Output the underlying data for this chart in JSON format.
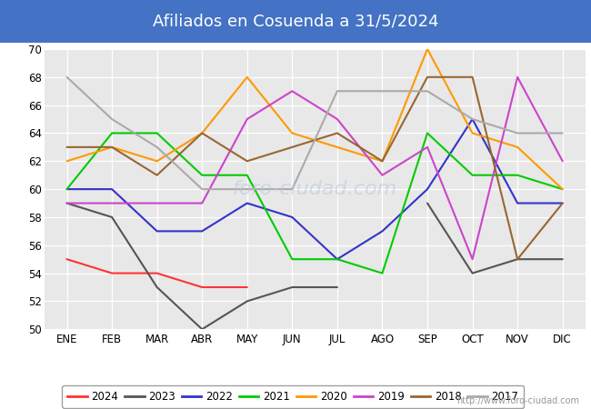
{
  "title": "Afiliados en Cosuenda a 31/5/2024",
  "title_bg_color": "#4472c4",
  "title_text_color": "white",
  "ylim": [
    50,
    70
  ],
  "yticks": [
    50,
    52,
    54,
    56,
    58,
    60,
    62,
    64,
    66,
    68,
    70
  ],
  "months": [
    "ENE",
    "FEB",
    "MAR",
    "ABR",
    "MAY",
    "JUN",
    "JUL",
    "AGO",
    "SEP",
    "OCT",
    "NOV",
    "DIC"
  ],
  "url": "http://www.foro-ciudad.com",
  "series": {
    "2024": {
      "color": "#ff3333",
      "data": [
        55,
        54,
        54,
        53,
        53,
        null,
        null,
        null,
        null,
        null,
        null,
        null
      ]
    },
    "2023": {
      "color": "#555555",
      "data": [
        59,
        58,
        53,
        50,
        52,
        53,
        53,
        null,
        59,
        54,
        55,
        55
      ]
    },
    "2022": {
      "color": "#3333cc",
      "data": [
        60,
        60,
        57,
        57,
        59,
        58,
        55,
        57,
        60,
        65,
        59,
        59
      ]
    },
    "2021": {
      "color": "#00cc00",
      "data": [
        60,
        64,
        64,
        61,
        61,
        55,
        55,
        54,
        64,
        61,
        61,
        60
      ]
    },
    "2020": {
      "color": "#ff9900",
      "data": [
        62,
        63,
        62,
        64,
        68,
        64,
        63,
        62,
        70,
        64,
        63,
        60
      ]
    },
    "2019": {
      "color": "#cc44cc",
      "data": [
        59,
        59,
        59,
        59,
        65,
        67,
        65,
        61,
        63,
        55,
        68,
        62
      ]
    },
    "2018": {
      "color": "#996633",
      "data": [
        63,
        63,
        61,
        64,
        62,
        63,
        64,
        62,
        68,
        68,
        55,
        59
      ]
    },
    "2017": {
      "color": "#aaaaaa",
      "data": [
        68,
        65,
        63,
        60,
        60,
        60,
        67,
        67,
        67,
        65,
        64,
        64
      ]
    }
  },
  "legend_order": [
    "2024",
    "2023",
    "2022",
    "2021",
    "2020",
    "2019",
    "2018",
    "2017"
  ],
  "bg_plot": "#e8e8e8",
  "grid_color": "white",
  "footer_color": "#999999"
}
